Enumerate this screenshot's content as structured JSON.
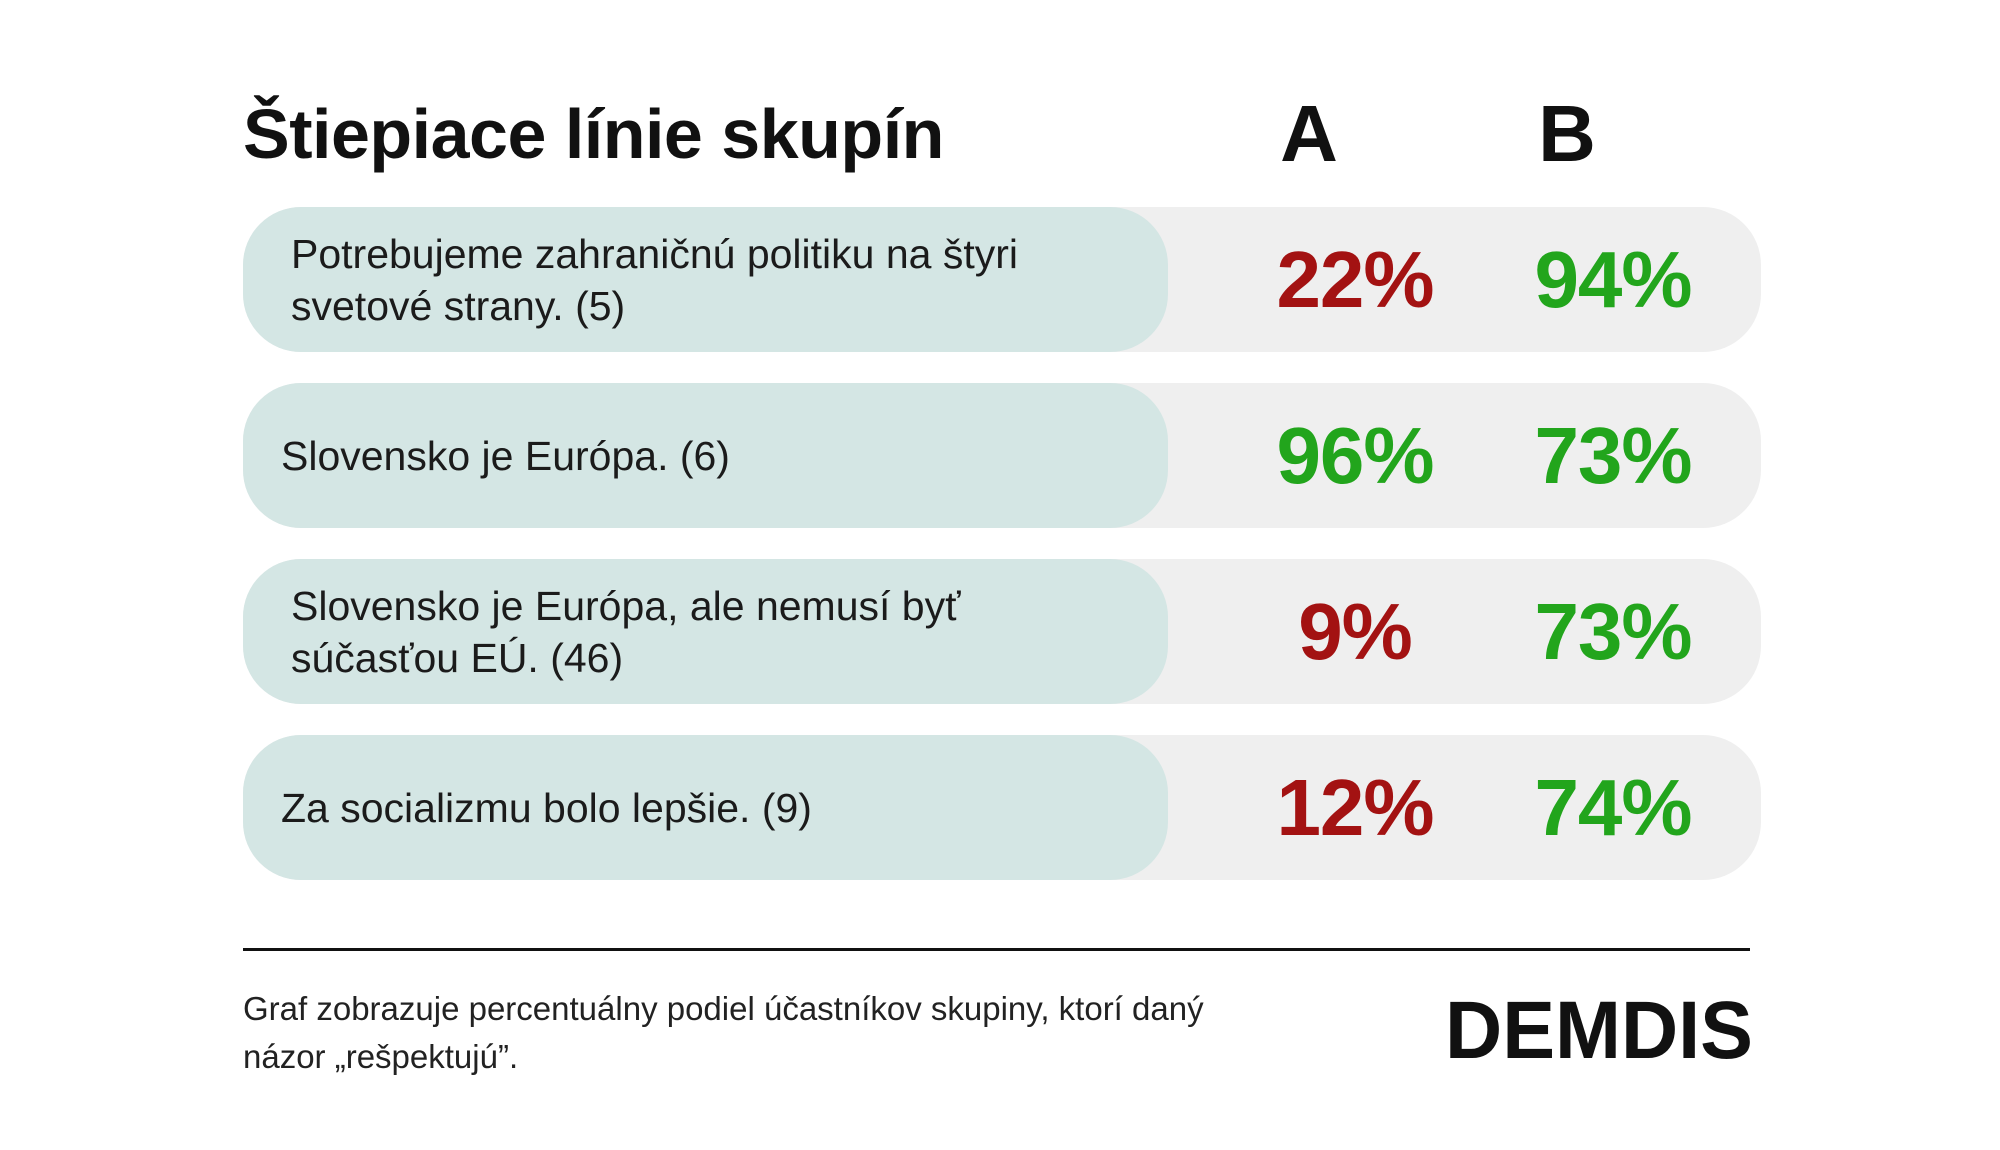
{
  "title": "Štiepiace línie skupín",
  "columns": [
    "A",
    "B"
  ],
  "colors": {
    "low": "#a31212",
    "high": "#22a51c",
    "statement_bg": "#d4e6e4",
    "row_bg": "#efefef"
  },
  "chart_data": {
    "type": "table",
    "title": "Štiepiace línie skupín",
    "columns": [
      "A",
      "B"
    ],
    "rows": [
      {
        "statement": "Potrebujeme zahraničnú politiku na štyri svetové strany. (5)",
        "lines": [
          "Potrebujeme zahraničnú politiku na štyri",
          "svetové strany. (5)"
        ],
        "values": [
          22,
          94
        ],
        "labels": [
          "22%",
          "94%"
        ],
        "colors": [
          "#a31212",
          "#22a51c"
        ]
      },
      {
        "statement": "Slovensko je Európa. (6)",
        "lines": [
          "Slovensko je Európa. (6)"
        ],
        "values": [
          96,
          73
        ],
        "labels": [
          "96%",
          "73%"
        ],
        "colors": [
          "#22a51c",
          "#22a51c"
        ]
      },
      {
        "statement": "Slovensko je Európa, ale nemusí byť súčasťou EÚ. (46)",
        "lines": [
          "Slovensko je Európa, ale nemusí byť",
          "súčasťou EÚ. (46)"
        ],
        "values": [
          9,
          73
        ],
        "labels": [
          "9%",
          "73%"
        ],
        "colors": [
          "#a31212",
          "#22a51c"
        ]
      },
      {
        "statement": "Za socializmu bolo lepšie. (9)",
        "lines": [
          "Za socializmu bolo lepšie. (9)"
        ],
        "values": [
          12,
          74
        ],
        "labels": [
          "12%",
          "74%"
        ],
        "colors": [
          "#a31212",
          "#22a51c"
        ]
      }
    ]
  },
  "footnote": {
    "line1": "Graf zobrazuje percentuálny podiel účastníkov skupiny, ktorí daný",
    "line2": "názor „rešpektujú”."
  },
  "logo": {
    "text": "DEMDIS"
  }
}
